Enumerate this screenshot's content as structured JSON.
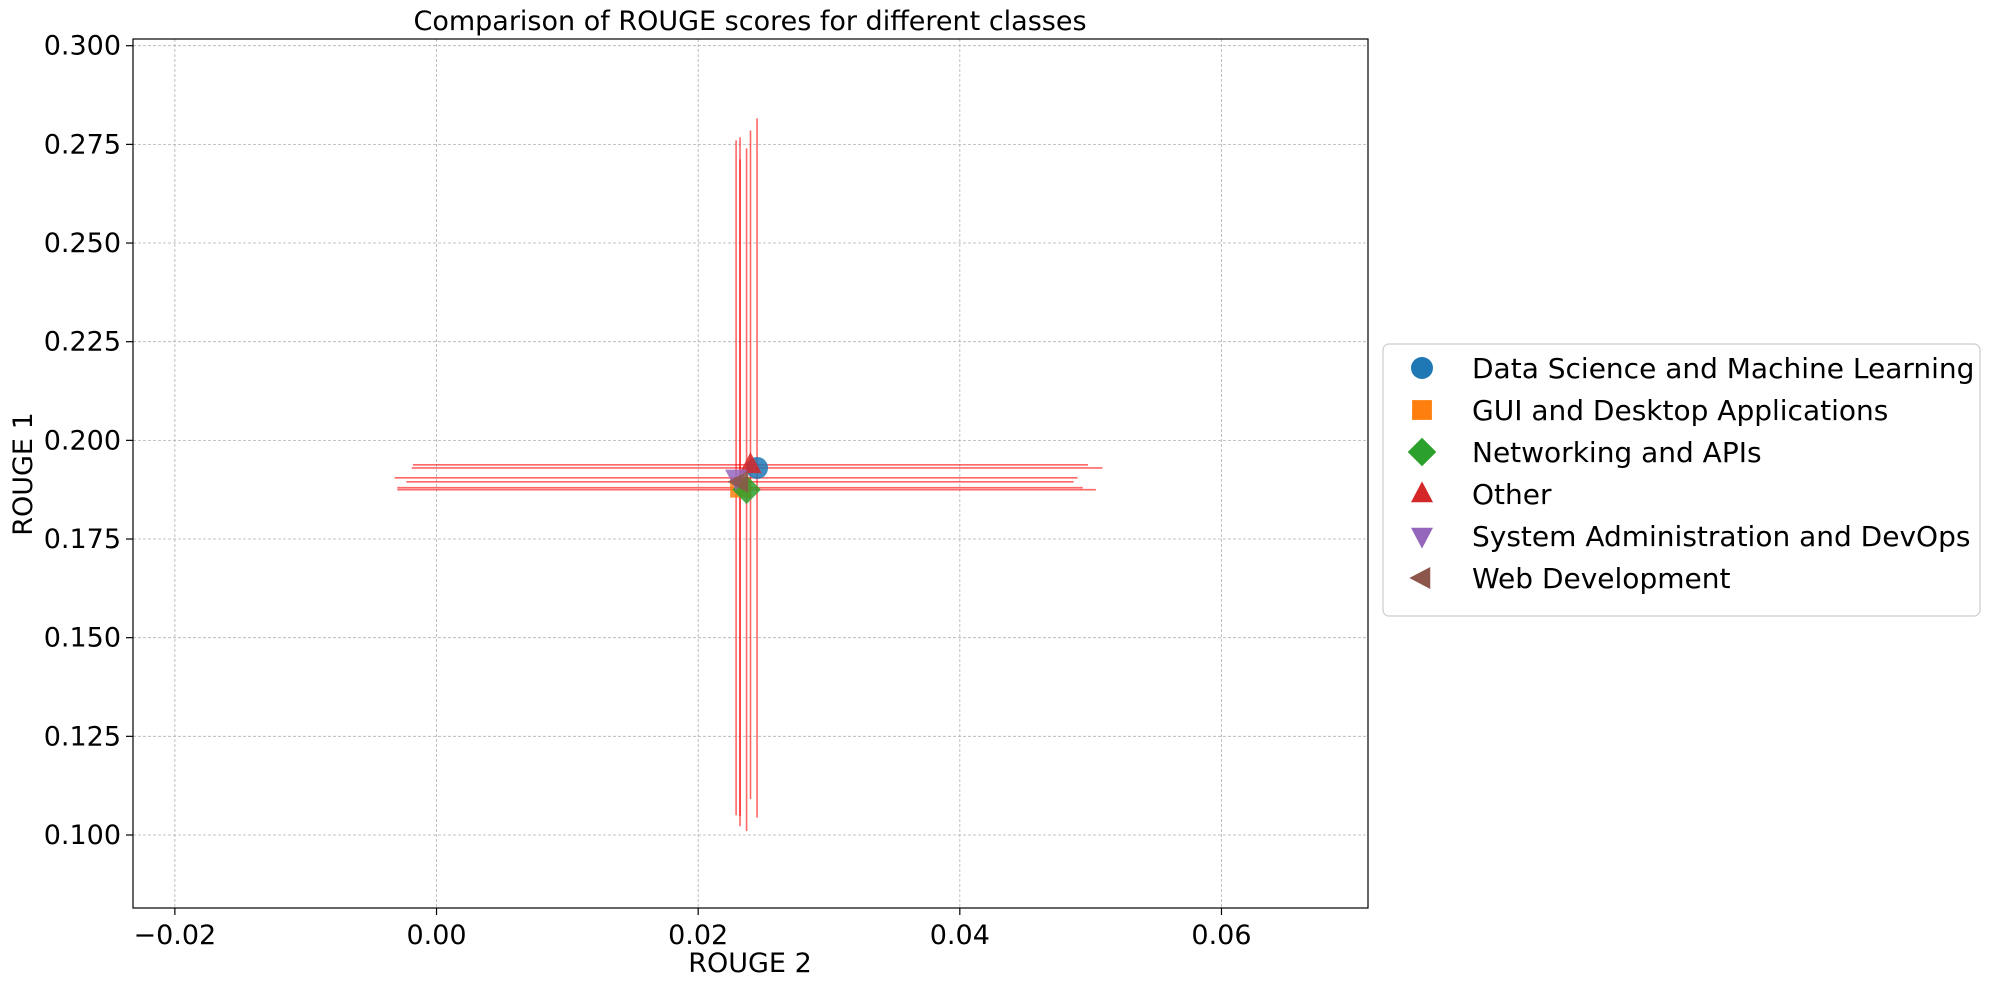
{
  "chart_data": {
    "type": "scatter",
    "title": "Comparison of ROUGE scores for different classes",
    "xlabel": "ROUGE 2",
    "ylabel": "ROUGE 1",
    "xlim": [
      -0.0232,
      0.0712
    ],
    "ylim": [
      0.0815,
      0.3017
    ],
    "x_ticks": [
      {
        "value": -0.02,
        "label": "−0.02"
      },
      {
        "value": 0.0,
        "label": "0.00"
      },
      {
        "value": 0.02,
        "label": "0.02"
      },
      {
        "value": 0.04,
        "label": "0.04"
      },
      {
        "value": 0.06,
        "label": "0.06"
      }
    ],
    "y_ticks": [
      {
        "value": 0.1,
        "label": "0.100"
      },
      {
        "value": 0.125,
        "label": "0.125"
      },
      {
        "value": 0.15,
        "label": "0.150"
      },
      {
        "value": 0.175,
        "label": "0.175"
      },
      {
        "value": 0.2,
        "label": "0.200"
      },
      {
        "value": 0.225,
        "label": "0.225"
      },
      {
        "value": 0.25,
        "label": "0.250"
      },
      {
        "value": 0.275,
        "label": "0.275"
      },
      {
        "value": 0.3,
        "label": "0.300"
      }
    ],
    "grid": true,
    "legend_position": "right",
    "error_bar_color": "#ff0000",
    "series": [
      {
        "name": "Data Science and Machine Learning",
        "marker": "circle",
        "color": "#1f77b4",
        "x": 0.0245,
        "y": 0.193,
        "xerr": 0.0264,
        "yerr": 0.0886
      },
      {
        "name": "GUI and Desktop Applications",
        "marker": "square",
        "color": "#ff7f0e",
        "x": 0.0232,
        "y": 0.188,
        "xerr": 0.0262,
        "yerr": 0.0832
      },
      {
        "name": "Networking and APIs",
        "marker": "diamond",
        "color": "#2ca02c",
        "x": 0.0237,
        "y": 0.1875,
        "xerr": 0.0267,
        "yerr": 0.0865
      },
      {
        "name": "Other",
        "marker": "triangle-up",
        "color": "#d62728",
        "x": 0.024,
        "y": 0.1938,
        "xerr": 0.0258,
        "yerr": 0.0847
      },
      {
        "name": "System Administration and DevOps",
        "marker": "triangle-down",
        "color": "#9467bd",
        "x": 0.0229,
        "y": 0.1905,
        "xerr": 0.0261,
        "yerr": 0.0855
      },
      {
        "name": "Web Development",
        "marker": "triangle-left",
        "color": "#8c564b",
        "x": 0.0232,
        "y": 0.1895,
        "xerr": 0.0255,
        "yerr": 0.0873
      }
    ]
  }
}
